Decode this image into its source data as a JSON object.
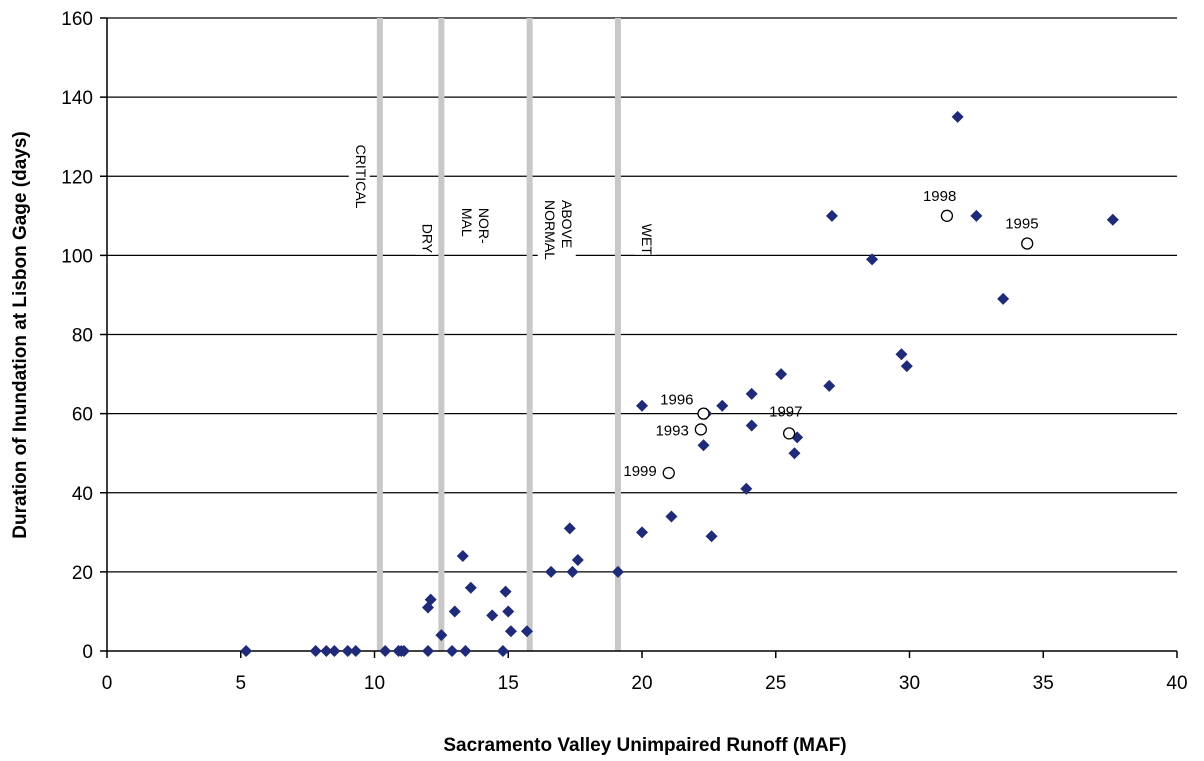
{
  "chart_data": {
    "type": "scatter",
    "title": "",
    "xlabel": "Sacramento Valley Unimpaired Runoff (MAF)",
    "ylabel": "Duration of Inundation at Lisbon Gage (days)",
    "xlim": [
      0,
      40
    ],
    "ylim": [
      0,
      160
    ],
    "xticks": [
      0,
      5,
      10,
      15,
      20,
      25,
      30,
      35,
      40
    ],
    "yticks": [
      0,
      20,
      40,
      60,
      80,
      100,
      120,
      140,
      160
    ],
    "grid": "horizontal",
    "colors": {
      "points": "#1f2a78",
      "zone_lines": "#c8c8c8",
      "grid": "#000000"
    },
    "zone_boundaries": [
      10.2,
      12.5,
      15.8,
      19.1
    ],
    "zone_labels": [
      {
        "lines": [
          "CRITICAL"
        ],
        "x": 9.3,
        "y": 128
      },
      {
        "lines": [
          "DRY"
        ],
        "x": 11.8,
        "y": 108
      },
      {
        "lines": [
          "NOR-",
          "MAL"
        ],
        "x": 13.9,
        "y": 112
      },
      {
        "lines": [
          "ABOVE",
          "NORMAL"
        ],
        "x": 17.0,
        "y": 114
      },
      {
        "lines": [
          "WET"
        ],
        "x": 20.0,
        "y": 108
      }
    ],
    "series": [
      {
        "marker": "diamond",
        "points": [
          [
            5.2,
            0
          ],
          [
            7.8,
            0
          ],
          [
            8.2,
            0
          ],
          [
            8.5,
            0
          ],
          [
            9.0,
            0
          ],
          [
            9.3,
            0
          ],
          [
            10.4,
            0
          ],
          [
            10.9,
            0
          ],
          [
            11.0,
            0
          ],
          [
            11.1,
            0
          ],
          [
            12.0,
            0
          ],
          [
            12.0,
            11
          ],
          [
            12.1,
            13
          ],
          [
            12.5,
            4
          ],
          [
            12.9,
            0
          ],
          [
            13.0,
            10
          ],
          [
            13.3,
            24
          ],
          [
            13.4,
            0
          ],
          [
            13.6,
            16
          ],
          [
            14.4,
            9
          ],
          [
            14.8,
            0
          ],
          [
            14.9,
            15
          ],
          [
            15.0,
            10
          ],
          [
            15.1,
            5
          ],
          [
            15.7,
            5
          ],
          [
            16.6,
            20
          ],
          [
            17.3,
            31
          ],
          [
            17.4,
            20
          ],
          [
            17.6,
            23
          ],
          [
            19.1,
            20
          ],
          [
            20.0,
            62
          ],
          [
            20.0,
            30
          ],
          [
            21.1,
            34
          ],
          [
            22.3,
            52
          ],
          [
            22.4,
            60
          ],
          [
            22.6,
            29
          ],
          [
            23.0,
            62
          ],
          [
            23.9,
            41
          ],
          [
            24.1,
            65
          ],
          [
            24.1,
            57
          ],
          [
            25.2,
            70
          ],
          [
            25.7,
            50
          ],
          [
            25.8,
            54
          ],
          [
            27.0,
            67
          ],
          [
            27.1,
            110
          ],
          [
            28.6,
            99
          ],
          [
            29.7,
            75
          ],
          [
            29.9,
            72
          ],
          [
            31.8,
            135
          ],
          [
            32.5,
            110
          ],
          [
            33.5,
            89
          ],
          [
            37.6,
            109
          ]
        ]
      },
      {
        "marker": "open-circle",
        "points": [
          {
            "x": 21.0,
            "y": 45,
            "label": "1999"
          },
          {
            "x": 22.2,
            "y": 56,
            "label": "1993"
          },
          {
            "x": 22.3,
            "y": 60,
            "label": "1996"
          },
          {
            "x": 25.5,
            "y": 55,
            "label": "1997"
          },
          {
            "x": 31.4,
            "y": 110,
            "label": "1998"
          },
          {
            "x": 34.4,
            "y": 103,
            "label": "1995"
          }
        ]
      }
    ]
  }
}
